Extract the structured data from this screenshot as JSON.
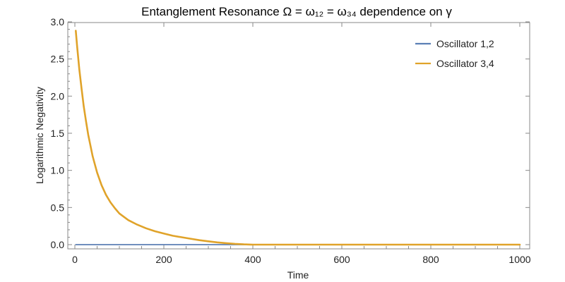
{
  "chart_data": {
    "type": "line",
    "title": "Entanglement Resonance Ω = ω₁₂ = ω₃₄ dependence on γ",
    "xlabel": "Time",
    "ylabel": "Logarithmic Negativity",
    "xlim": [
      0,
      1000
    ],
    "ylim": [
      0,
      3.0
    ],
    "x_ticks": [
      "0",
      "200",
      "400",
      "600",
      "800",
      "1000"
    ],
    "y_ticks": [
      "0.0",
      "0.5",
      "1.0",
      "1.5",
      "2.0",
      "2.5",
      "3.0"
    ],
    "grid": false,
    "legend_position": "top-right",
    "series": [
      {
        "name": "Oscillator 1,2",
        "color": "#5b7fb5",
        "x": [
          2,
          100,
          200,
          300,
          400,
          500,
          600,
          700,
          800,
          900,
          1000
        ],
        "y": [
          0,
          0,
          0,
          0,
          0,
          0,
          0,
          0,
          0,
          0,
          0
        ]
      },
      {
        "name": "Oscillator 3,4",
        "color": "#e0a32a",
        "x": [
          2,
          5,
          10,
          15,
          20,
          25,
          30,
          40,
          50,
          60,
          70,
          80,
          90,
          100,
          120,
          140,
          160,
          180,
          200,
          220,
          240,
          260,
          280,
          300,
          320,
          340,
          360,
          380,
          395,
          400,
          500,
          600,
          700,
          800,
          900,
          1000
        ],
        "y": [
          2.88,
          2.67,
          2.36,
          2.1,
          1.86,
          1.66,
          1.48,
          1.19,
          0.97,
          0.8,
          0.67,
          0.57,
          0.49,
          0.42,
          0.33,
          0.27,
          0.22,
          0.18,
          0.15,
          0.12,
          0.1,
          0.08,
          0.06,
          0.045,
          0.03,
          0.02,
          0.01,
          0.004,
          0.001,
          0,
          0,
          0,
          0,
          0,
          0,
          0
        ]
      }
    ]
  }
}
